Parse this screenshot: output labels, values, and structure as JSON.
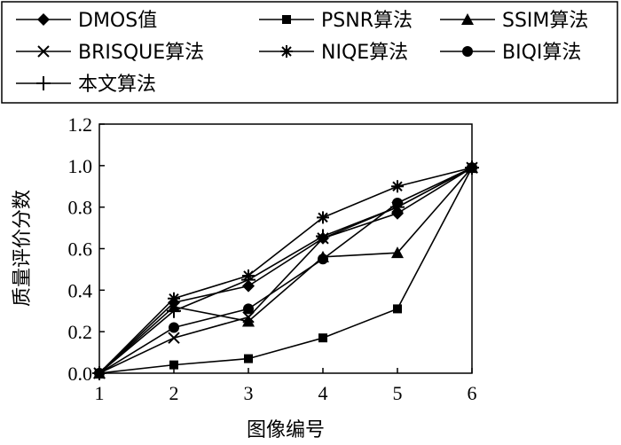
{
  "chart_data": {
    "type": "line",
    "title": "",
    "xlabel": "图像编号",
    "ylabel": "质量评价分数",
    "x": [
      1,
      2,
      3,
      4,
      5,
      6
    ],
    "xlim": [
      1,
      6
    ],
    "ylim": [
      0,
      1.2
    ],
    "xticks": [
      "1",
      "2",
      "3",
      "4",
      "5",
      "6"
    ],
    "yticks": [
      "0.0",
      "0.2",
      "0.4",
      "0.6",
      "0.8",
      "1.0",
      "1.2"
    ],
    "grid": false,
    "legend_position": "top",
    "series": [
      {
        "name": "DMOS值",
        "marker": "diamond",
        "values": [
          0.0,
          0.34,
          0.42,
          0.65,
          0.77,
          0.99
        ]
      },
      {
        "name": "PSNR算法",
        "marker": "square",
        "values": [
          0.0,
          0.04,
          0.07,
          0.17,
          0.31,
          0.99
        ]
      },
      {
        "name": "SSIM算法",
        "marker": "triangle",
        "values": [
          0.0,
          0.32,
          0.25,
          0.56,
          0.58,
          0.99
        ]
      },
      {
        "name": "BRISQUE算法",
        "marker": "x",
        "values": [
          0.0,
          0.17,
          0.27,
          0.65,
          0.8,
          0.99
        ]
      },
      {
        "name": "NIQE算法",
        "marker": "asterisk",
        "values": [
          0.0,
          0.36,
          0.47,
          0.75,
          0.9,
          0.99
        ]
      },
      {
        "name": "BIQI算法",
        "marker": "circle",
        "values": [
          0.0,
          0.22,
          0.31,
          0.55,
          0.82,
          0.99
        ]
      },
      {
        "name": "本文算法",
        "marker": "plus",
        "values": [
          0.0,
          0.3,
          0.45,
          0.66,
          0.8,
          0.99
        ]
      }
    ]
  }
}
